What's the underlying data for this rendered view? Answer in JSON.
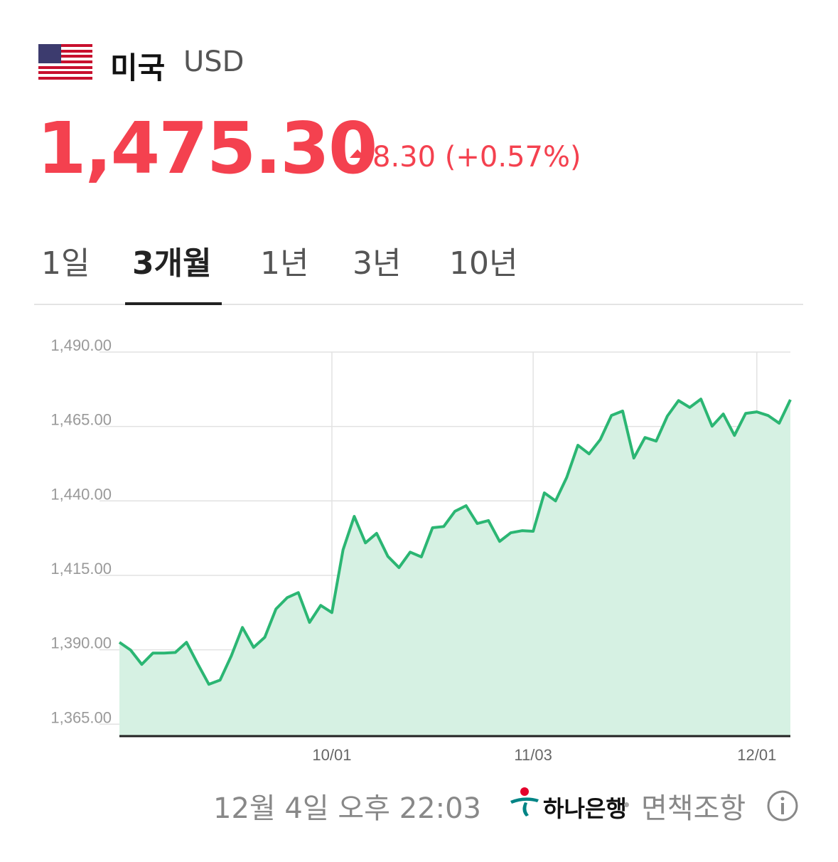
{
  "header": {
    "country": "미국",
    "currency": "USD",
    "price": "1,475.30",
    "change": "8.30 (+0.57%)"
  },
  "tabs": [
    "1일",
    "3개월",
    "1년",
    "3년",
    "10년"
  ],
  "chart_data": {
    "type": "area",
    "color": "#2bb673",
    "fill": "#d6f1e3",
    "grid": true,
    "categories": [
      null,
      null,
      null,
      null,
      null,
      null,
      null,
      null,
      null,
      null,
      null,
      null,
      null,
      null,
      null,
      null,
      null,
      null,
      null,
      "10/01",
      null,
      null,
      null,
      null,
      null,
      null,
      null,
      null,
      null,
      null,
      null,
      null,
      null,
      null,
      null,
      null,
      null,
      "11/03",
      null,
      null,
      null,
      null,
      null,
      null,
      null,
      null,
      null,
      null,
      null,
      null,
      null,
      null,
      null,
      null,
      null,
      null,
      null,
      "12/01",
      null,
      null,
      null
    ],
    "values": [
      1392.5,
      1389.9,
      1385.1,
      1388.9,
      1388.9,
      1389.1,
      1392.5,
      1385.3,
      1378.4,
      1379.8,
      1387.9,
      1397.5,
      1390.8,
      1394.2,
      1403.7,
      1407.5,
      1409.2,
      1399.2,
      1404.9,
      1402.5,
      1423.6,
      1434.8,
      1425.9,
      1429.1,
      1421.4,
      1417.6,
      1422.8,
      1421.2,
      1431.0,
      1431.4,
      1436.5,
      1438.4,
      1432.4,
      1433.4,
      1426.4,
      1429.3,
      1430.0,
      1429.8,
      1442.7,
      1440.0,
      1447.9,
      1458.7,
      1455.8,
      1460.6,
      1468.7,
      1470.2,
      1454.4,
      1461.3,
      1460.1,
      1468.5,
      1473.7,
      1471.4,
      1474.2,
      1465.1,
      1469.2,
      1462.0,
      1469.4,
      1469.9,
      1468.7,
      1466.1,
      1474.0
    ],
    "ylim": [
      1361,
      1490
    ],
    "yticks": [
      {
        "value": 1365,
        "label": "1,365.00"
      },
      {
        "value": 1390,
        "label": "1,390.00"
      },
      {
        "value": 1415,
        "label": "1,415.00"
      },
      {
        "value": 1440,
        "label": "1,440.00"
      },
      {
        "value": 1465,
        "label": "1,465.00"
      },
      {
        "value": 1490,
        "label": "1,490.00"
      }
    ]
  },
  "footer": {
    "timestamp": "12월 4일 오후 22:03",
    "bank": "하나은행",
    "disclaimer": "면책조항"
  }
}
